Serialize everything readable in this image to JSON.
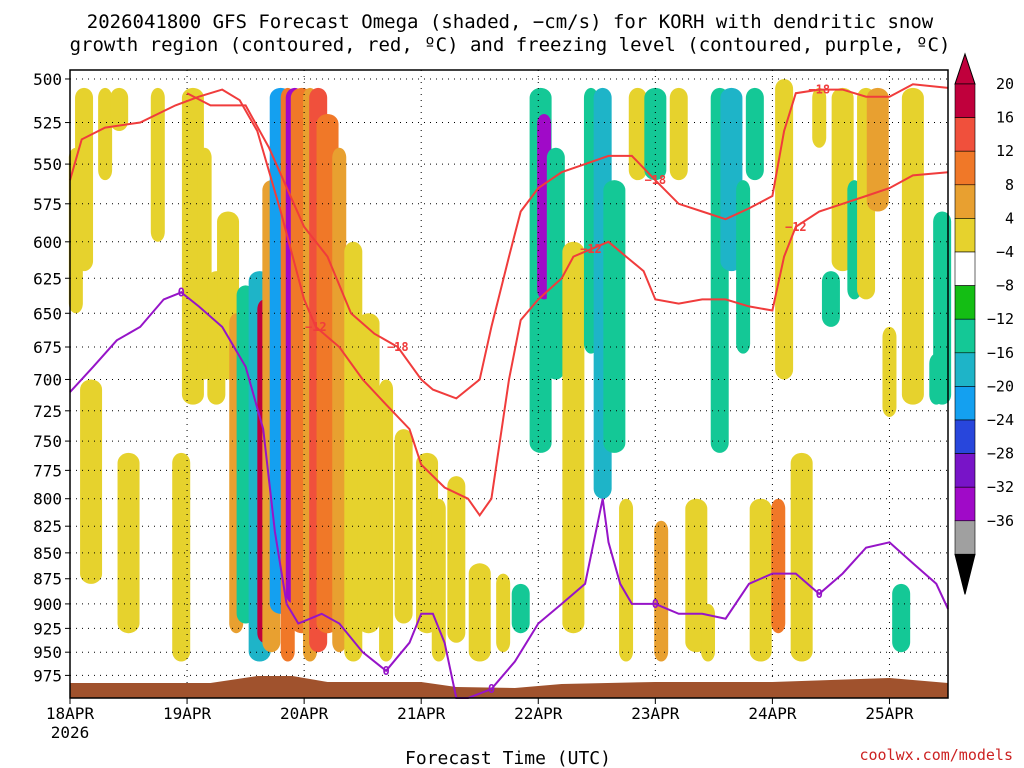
{
  "chart_data": {
    "type": "heatmap",
    "title": [
      "2026041800 GFS Forecast Omega (shaded, −cm/s) for KORH with dendritic snow",
      "growth region (contoured, red, ºC) and freezing level (contoured, purple, ºC)"
    ],
    "xlabel": "Forecast Time (UTC)",
    "xticks": [
      {
        "label": "18APR",
        "sub": "2026",
        "t": 0
      },
      {
        "label": "19APR",
        "sub": "",
        "t": 1
      },
      {
        "label": "20APR",
        "sub": "",
        "t": 2
      },
      {
        "label": "21APR",
        "sub": "",
        "t": 3
      },
      {
        "label": "22APR",
        "sub": "",
        "t": 4
      },
      {
        "label": "23APR",
        "sub": "",
        "t": 5
      },
      {
        "label": "24APR",
        "sub": "",
        "t": 6
      },
      {
        "label": "25APR",
        "sub": "",
        "t": 7
      }
    ],
    "xlim": [
      0,
      7.5
    ],
    "yticks": [
      500,
      525,
      550,
      575,
      600,
      625,
      650,
      675,
      700,
      725,
      750,
      775,
      800,
      825,
      850,
      875,
      900,
      925,
      950,
      975
    ],
    "ylim": [
      495,
      1000
    ],
    "y_scale": "log-pressure",
    "grid": true,
    "colorbar": {
      "labels": [
        "20",
        "16",
        "12",
        "8",
        "4",
        "−4",
        "−8",
        "−12",
        "−16",
        "−20",
        "−24",
        "−28",
        "−32",
        "−36"
      ],
      "colors": [
        "#c0003c",
        "#f0503c",
        "#f07828",
        "#e8a030",
        "#e6d22d",
        "#ffffff",
        "#14be14",
        "#14c896",
        "#1eb4c8",
        "#14a0f0",
        "#2846dc",
        "#7814c8",
        "#a00ac8",
        "#a0a0a0"
      ]
    },
    "omega_shading": [
      {
        "t": 0.05,
        "p": [
          540,
          650
        ],
        "v": 4
      },
      {
        "t": 0.12,
        "p": [
          505,
          620
        ],
        "v": 4
      },
      {
        "t": 0.18,
        "p": [
          700,
          880
        ],
        "v": 4
      },
      {
        "t": 0.3,
        "p": [
          505,
          560
        ],
        "v": 4
      },
      {
        "t": 0.42,
        "p": [
          505,
          530
        ],
        "v": 4
      },
      {
        "t": 0.5,
        "p": [
          760,
          930
        ],
        "v": 4
      },
      {
        "t": 0.75,
        "p": [
          505,
          600
        ],
        "v": 4
      },
      {
        "t": 0.95,
        "p": [
          760,
          960
        ],
        "v": 4
      },
      {
        "t": 1.05,
        "p": [
          505,
          720
        ],
        "v": 4
      },
      {
        "t": 1.15,
        "p": [
          540,
          700
        ],
        "v": 4
      },
      {
        "t": 1.25,
        "p": [
          620,
          720
        ],
        "v": 4
      },
      {
        "t": 1.35,
        "p": [
          580,
          700
        ],
        "v": 4
      },
      {
        "t": 1.42,
        "p": [
          650,
          930
        ],
        "v": 8
      },
      {
        "t": 1.5,
        "p": [
          630,
          920
        ],
        "v": -8
      },
      {
        "t": 1.62,
        "p": [
          620,
          960
        ],
        "v": -12
      },
      {
        "t": 1.66,
        "p": [
          640,
          940
        ],
        "v": 20
      },
      {
        "t": 1.72,
        "p": [
          560,
          950
        ],
        "v": 8
      },
      {
        "t": 1.8,
        "p": [
          505,
          910
        ],
        "v": -16
      },
      {
        "t": 1.86,
        "p": [
          505,
          960
        ],
        "v": 12
      },
      {
        "t": 1.92,
        "p": [
          505,
          900
        ],
        "v": -28
      },
      {
        "t": 1.98,
        "p": [
          505,
          930
        ],
        "v": 12
      },
      {
        "t": 2.05,
        "p": [
          505,
          960
        ],
        "v": 8
      },
      {
        "t": 2.12,
        "p": [
          505,
          950
        ],
        "v": 16
      },
      {
        "t": 2.2,
        "p": [
          520,
          930
        ],
        "v": 12
      },
      {
        "t": 2.3,
        "p": [
          540,
          950
        ],
        "v": 8
      },
      {
        "t": 2.42,
        "p": [
          600,
          960
        ],
        "v": 4
      },
      {
        "t": 2.55,
        "p": [
          650,
          930
        ],
        "v": 4
      },
      {
        "t": 2.7,
        "p": [
          700,
          960
        ],
        "v": 4
      },
      {
        "t": 2.85,
        "p": [
          740,
          920
        ],
        "v": 4
      },
      {
        "t": 3.05,
        "p": [
          760,
          930
        ],
        "v": 4
      },
      {
        "t": 3.15,
        "p": [
          800,
          960
        ],
        "v": 4
      },
      {
        "t": 3.3,
        "p": [
          780,
          940
        ],
        "v": 4
      },
      {
        "t": 3.5,
        "p": [
          860,
          960
        ],
        "v": 4
      },
      {
        "t": 3.7,
        "p": [
          870,
          950
        ],
        "v": 4
      },
      {
        "t": 3.85,
        "p": [
          880,
          930
        ],
        "v": -8
      },
      {
        "t": 4.02,
        "p": [
          505,
          760
        ],
        "v": -8
      },
      {
        "t": 4.05,
        "p": [
          520,
          640
        ],
        "v": -28
      },
      {
        "t": 4.15,
        "p": [
          540,
          700
        ],
        "v": -8
      },
      {
        "t": 4.3,
        "p": [
          600,
          930
        ],
        "v": 4
      },
      {
        "t": 4.45,
        "p": [
          505,
          680
        ],
        "v": -8
      },
      {
        "t": 4.55,
        "p": [
          505,
          800
        ],
        "v": -12
      },
      {
        "t": 4.65,
        "p": [
          560,
          760
        ],
        "v": -8
      },
      {
        "t": 4.75,
        "p": [
          800,
          960
        ],
        "v": 4
      },
      {
        "t": 4.85,
        "p": [
          505,
          560
        ],
        "v": 4
      },
      {
        "t": 5.0,
        "p": [
          505,
          560
        ],
        "v": -8
      },
      {
        "t": 5.05,
        "p": [
          820,
          960
        ],
        "v": 8
      },
      {
        "t": 5.2,
        "p": [
          505,
          560
        ],
        "v": 4
      },
      {
        "t": 5.35,
        "p": [
          800,
          950
        ],
        "v": 4
      },
      {
        "t": 5.45,
        "p": [
          900,
          960
        ],
        "v": 4
      },
      {
        "t": 5.55,
        "p": [
          505,
          760
        ],
        "v": -8
      },
      {
        "t": 5.65,
        "p": [
          505,
          620
        ],
        "v": -12
      },
      {
        "t": 5.75,
        "p": [
          560,
          680
        ],
        "v": -8
      },
      {
        "t": 5.85,
        "p": [
          505,
          560
        ],
        "v": -8
      },
      {
        "t": 5.9,
        "p": [
          800,
          960
        ],
        "v": 4
      },
      {
        "t": 6.05,
        "p": [
          800,
          930
        ],
        "v": 12
      },
      {
        "t": 6.1,
        "p": [
          500,
          700
        ],
        "v": 4
      },
      {
        "t": 6.25,
        "p": [
          760,
          960
        ],
        "v": 4
      },
      {
        "t": 6.4,
        "p": [
          505,
          540
        ],
        "v": 4
      },
      {
        "t": 6.5,
        "p": [
          620,
          660
        ],
        "v": -8
      },
      {
        "t": 6.6,
        "p": [
          505,
          620
        ],
        "v": 4
      },
      {
        "t": 6.7,
        "p": [
          560,
          640
        ],
        "v": -8
      },
      {
        "t": 6.8,
        "p": [
          505,
          640
        ],
        "v": 4
      },
      {
        "t": 6.9,
        "p": [
          505,
          580
        ],
        "v": 8
      },
      {
        "t": 7.0,
        "p": [
          660,
          730
        ],
        "v": 4
      },
      {
        "t": 7.1,
        "p": [
          880,
          950
        ],
        "v": -8
      },
      {
        "t": 7.2,
        "p": [
          505,
          720
        ],
        "v": 4
      },
      {
        "t": 7.4,
        "p": [
          680,
          720
        ],
        "v": -8
      },
      {
        "t": 7.45,
        "p": [
          580,
          720
        ],
        "v": -8
      }
    ],
    "dgz_contours": [
      {
        "name": "-12 upper",
        "label": "−12",
        "t": [
          0,
          0.1,
          0.3,
          0.6,
          0.9,
          1.1,
          1.3,
          1.45,
          1.6,
          1.8,
          2.0,
          2.1,
          2.3,
          2.5,
          2.7,
          2.9,
          3.0,
          3.2,
          3.4,
          3.5,
          3.6,
          3.75,
          3.85,
          4.0,
          4.2,
          4.3,
          4.45,
          4.6,
          4.75,
          4.9,
          5.0,
          5.2,
          5.4,
          5.6,
          5.8,
          6.0,
          6.1,
          6.2,
          6.4,
          6.6,
          6.8,
          7.0,
          7.2,
          7.5
        ],
        "p": [
          560,
          535,
          528,
          525,
          515,
          510,
          506,
          512,
          530,
          580,
          640,
          660,
          675,
          700,
          720,
          740,
          770,
          790,
          800,
          815,
          800,
          700,
          655,
          640,
          625,
          610,
          605,
          600,
          610,
          620,
          640,
          643,
          640,
          640,
          645,
          648,
          610,
          590,
          580,
          575,
          570,
          565,
          557,
          555
        ]
      },
      {
        "name": "-18 upper",
        "label": "−18",
        "t": [
          1.0,
          1.2,
          1.5,
          1.7,
          2.0,
          2.2,
          2.4,
          2.6,
          2.8,
          3.0,
          3.1,
          3.3,
          3.5,
          3.6,
          3.75,
          3.85,
          4.0,
          4.2,
          4.4,
          4.6,
          4.8,
          5.0,
          5.2,
          5.4,
          5.6,
          5.8,
          6.0,
          6.1,
          6.2,
          6.4,
          6.6,
          6.8,
          7.0,
          7.2,
          7.5
        ],
        "p": [
          508,
          515,
          515,
          540,
          590,
          610,
          650,
          665,
          675,
          700,
          708,
          715,
          700,
          660,
          610,
          580,
          565,
          555,
          550,
          545,
          545,
          560,
          575,
          580,
          585,
          578,
          570,
          530,
          508,
          506,
          506,
          510,
          510,
          503,
          505
        ]
      }
    ],
    "freezing_level": {
      "label": "0",
      "t": [
        0,
        0.2,
        0.4,
        0.6,
        0.8,
        0.95,
        1.1,
        1.3,
        1.5,
        1.65,
        1.75,
        1.85,
        1.95,
        2.05,
        2.15,
        2.3,
        2.5,
        2.7,
        2.9,
        3.0,
        3.1,
        3.2,
        3.3,
        3.4,
        3.6,
        3.8,
        4.0,
        4.2,
        4.4,
        4.55,
        4.6,
        4.7,
        4.8,
        5.0,
        5.2,
        5.4,
        5.6,
        5.8,
        6.0,
        6.2,
        6.4,
        6.6,
        6.8,
        7.0,
        7.2,
        7.4,
        7.5
      ],
      "p": [
        710,
        690,
        670,
        660,
        640,
        635,
        645,
        660,
        690,
        740,
        830,
        900,
        920,
        915,
        910,
        920,
        950,
        970,
        940,
        910,
        910,
        940,
        1000,
        1000,
        990,
        960,
        920,
        900,
        880,
        800,
        840,
        880,
        900,
        900,
        910,
        910,
        915,
        880,
        870,
        870,
        890,
        870,
        845,
        840,
        860,
        880,
        905
      ]
    }
  }
}
